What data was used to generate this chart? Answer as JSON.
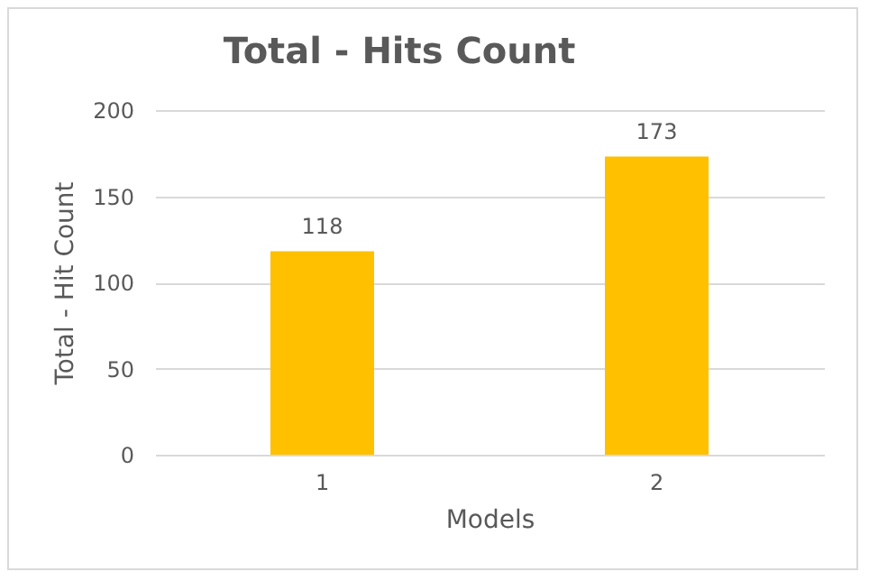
{
  "chart_data": {
    "type": "bar",
    "title": "Total - Hits Count",
    "xlabel": "Models",
    "ylabel": "Total - Hit Count",
    "categories": [
      "1",
      "2"
    ],
    "values": [
      118,
      173
    ],
    "color": "#ffc000",
    "ylim": [
      0,
      200
    ],
    "yticks": [
      0,
      50,
      100,
      150,
      200
    ],
    "grid": "y",
    "data_labels": true
  }
}
